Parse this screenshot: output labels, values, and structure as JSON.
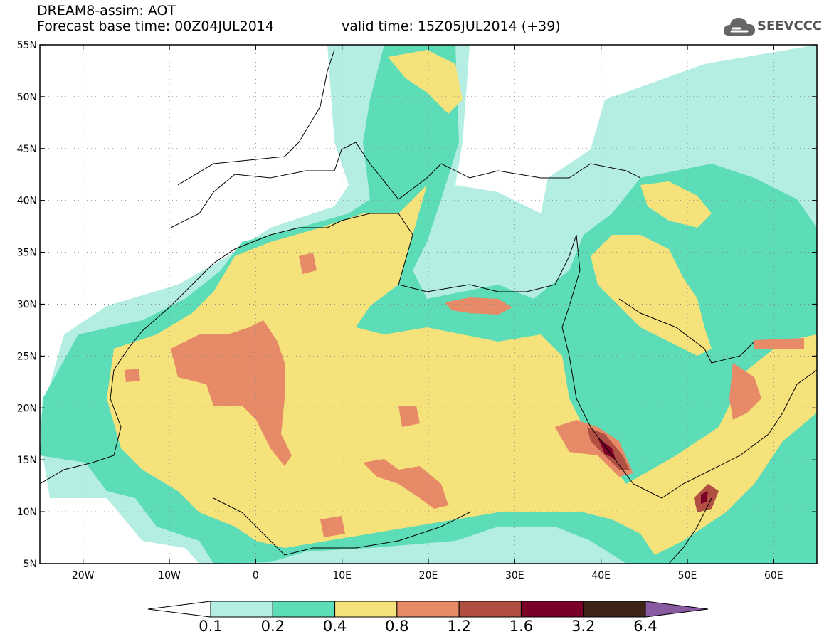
{
  "title": {
    "line1": "DREAM8-assim: AOT",
    "line2": "Forecast base time: 00Z04JUL2014",
    "valid": "valid time: 15Z05JUL2014 (+39)"
  },
  "logo": {
    "text": "SEEVCCC",
    "icon": "cloud-icon"
  },
  "map": {
    "lon_range": [
      -25,
      65
    ],
    "lat_range": [
      5,
      55
    ],
    "x_ticks": [
      {
        "lon": -20,
        "label": "20W"
      },
      {
        "lon": -10,
        "label": "10W"
      },
      {
        "lon": 0,
        "label": "0"
      },
      {
        "lon": 10,
        "label": "10E"
      },
      {
        "lon": 20,
        "label": "20E"
      },
      {
        "lon": 30,
        "label": "30E"
      },
      {
        "lon": 40,
        "label": "40E"
      },
      {
        "lon": 50,
        "label": "50E"
      },
      {
        "lon": 60,
        "label": "60E"
      }
    ],
    "y_ticks": [
      {
        "lat": 55,
        "label": "55N"
      },
      {
        "lat": 50,
        "label": "50N"
      },
      {
        "lat": 45,
        "label": "45N"
      },
      {
        "lat": 40,
        "label": "40N"
      },
      {
        "lat": 35,
        "label": "35N"
      },
      {
        "lat": 30,
        "label": "30N"
      },
      {
        "lat": 25,
        "label": "25N"
      },
      {
        "lat": 20,
        "label": "20N"
      },
      {
        "lat": 15,
        "label": "15N"
      },
      {
        "lat": 10,
        "label": "10N"
      },
      {
        "lat": 5,
        "label": "5N"
      }
    ],
    "grid": true
  },
  "colorbar": {
    "labels": [
      "0.1",
      "0.2",
      "0.4",
      "0.8",
      "1.2",
      "1.6",
      "3.2",
      "6.4"
    ],
    "colors": [
      "#ffffff",
      "#b4ede2",
      "#5ddcb8",
      "#f6e27a",
      "#e68a68",
      "#b04f42",
      "#7a0028",
      "#3d2416",
      "#8a5aa0"
    ]
  }
}
